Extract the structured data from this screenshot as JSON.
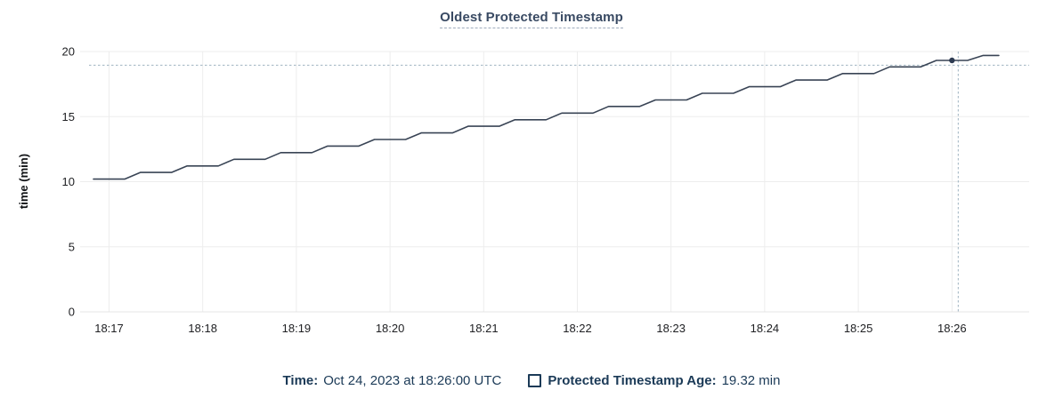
{
  "chart": {
    "title": "Oldest Protected Timestamp"
  },
  "legend": {
    "time_label": "Time:",
    "time_value": "Oct 24, 2023 at 18:26:00 UTC",
    "series_label": "Protected Timestamp Age:",
    "series_value": "19.32 min"
  },
  "colors": {
    "line": "#394455",
    "dot": "#2e3b52",
    "grid": "#ededed",
    "crosshair": "#9fb3c0",
    "tick_text": "#202124",
    "axis_label_text": "#0f1114",
    "legend_text": "#1b3a57",
    "title_text": "#394a63"
  },
  "chart_data": {
    "type": "line",
    "title": "Oldest Protected Timestamp",
    "xlabel": "",
    "ylabel": "time (min)",
    "ylim": [
      0,
      20
    ],
    "yticks": [
      0,
      5,
      10,
      15,
      20
    ],
    "xtick_labels": [
      "18:17",
      "18:18",
      "18:19",
      "18:20",
      "18:21",
      "18:22",
      "18:23",
      "18:24",
      "18:25",
      "18:26"
    ],
    "grid": true,
    "legend_position": "bottom",
    "series": [
      {
        "name": "Protected Timestamp Age",
        "unit": "min",
        "x_seconds_from_first_tick": [
          -10,
          0,
          10,
          20,
          30,
          40,
          50,
          60,
          70,
          80,
          90,
          100,
          110,
          120,
          130,
          140,
          150,
          160,
          170,
          180,
          190,
          200,
          210,
          220,
          230,
          240,
          250,
          260,
          270,
          280,
          290,
          300,
          310,
          320,
          330,
          340,
          350,
          360,
          370,
          380,
          390,
          400,
          410,
          420,
          430,
          440,
          450,
          460,
          470,
          480,
          490,
          500,
          510,
          520,
          530,
          540,
          550,
          560,
          570
        ],
        "values": [
          10.2,
          10.2,
          10.2,
          10.71,
          10.71,
          10.71,
          11.21,
          11.21,
          11.21,
          11.72,
          11.72,
          11.72,
          12.23,
          12.23,
          12.23,
          12.74,
          12.74,
          12.74,
          13.24,
          13.24,
          13.24,
          13.75,
          13.75,
          13.75,
          14.26,
          14.26,
          14.26,
          14.76,
          14.76,
          14.76,
          15.27,
          15.27,
          15.27,
          15.78,
          15.78,
          15.78,
          16.28,
          16.28,
          16.28,
          16.79,
          16.79,
          16.79,
          17.3,
          17.3,
          17.3,
          17.81,
          17.81,
          17.81,
          18.31,
          18.31,
          18.31,
          18.82,
          18.82,
          18.82,
          19.32,
          19.32,
          19.32,
          19.7,
          19.7
        ]
      }
    ],
    "hover": {
      "dot_x_seconds": 540,
      "dot_value": 19.32,
      "vline_x_seconds": 544,
      "hline_value": 18.95,
      "time_label": "Oct 24, 2023 at 18:26:00 UTC",
      "value_label": "19.32 min"
    }
  }
}
